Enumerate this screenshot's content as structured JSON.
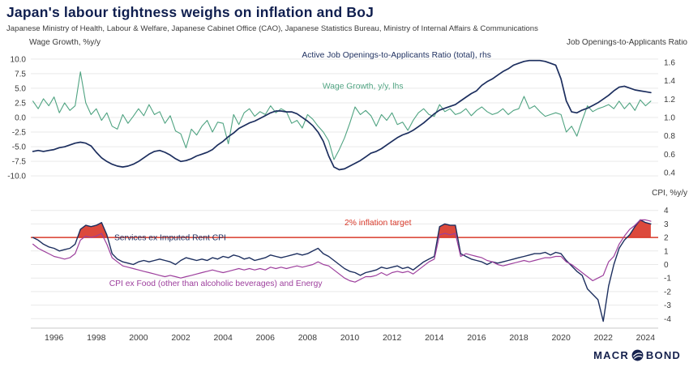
{
  "header": {
    "title": "Japan's labour tightness weighs on inflation and BoJ",
    "source_line": "Japanese Ministry of Health, Labour & Welfare, Japanese Cabinet Office (CAO), Japanese Statistics Bureau, Ministry of Internal Affairs & Communications"
  },
  "footer": {
    "brand_left": "MACR",
    "brand_right": "BOND"
  },
  "colors": {
    "title": "#101f4f",
    "navy": "#1c2e5e",
    "green": "#4fa381",
    "purple": "#9d3f9d",
    "red": "#d93a2b",
    "grid": "#e9e9e9",
    "axis_text": "#3a3a3a"
  },
  "chart_data": [
    {
      "type": "line",
      "panel": "top",
      "x_axis": {
        "min": 1994.9,
        "max": 2024.6,
        "ticks": [
          1996,
          1998,
          2000,
          2002,
          2004,
          2006,
          2008,
          2010,
          2012,
          2014,
          2016,
          2018,
          2020,
          2022,
          2024
        ],
        "show_labels": false
      },
      "left_axis": {
        "title": "Wage Growth, %y/y",
        "min": -11.5,
        "max": 11.5,
        "grid": true,
        "tick_values": [
          10,
          7.5,
          5,
          2.5,
          0,
          -2.5,
          -5,
          -7.5,
          -10
        ],
        "tick_labels": [
          "10.0",
          "7.5",
          "5.0",
          "2.5",
          "0.0",
          "-2.5",
          "-5.0",
          "-7.5",
          "-10.0"
        ]
      },
      "right_axis": {
        "title": "Job Openings-to-Applicants Ratio",
        "min": 0.267,
        "max": 1.732,
        "grid": false,
        "tick_values": [
          1.6,
          1.4,
          1.2,
          1.0,
          0.8,
          0.6,
          0.4
        ],
        "tick_labels": [
          "1.6",
          "1.4",
          "1.2",
          "1.0",
          "0.8",
          "0.6",
          "0.4"
        ]
      },
      "series": [
        {
          "name": "Wage Growth, y/y, lhs",
          "axis": "left",
          "color_key": "green",
          "width": 1.1,
          "x0": 1995,
          "dx": 0.25,
          "values": [
            2.8,
            1.5,
            3.2,
            2.0,
            3.5,
            0.8,
            2.5,
            1.2,
            2.0,
            7.8,
            2.5,
            0.5,
            1.5,
            -0.5,
            0.8,
            -1.5,
            -2.0,
            0.5,
            -1.0,
            0.2,
            1.5,
            0.3,
            2.2,
            0.5,
            1.0,
            -1.0,
            0.3,
            -2.3,
            -2.8,
            -5.2,
            -2.0,
            -3.0,
            -1.5,
            -0.5,
            -2.5,
            -0.8,
            -1.0,
            -4.5,
            0.5,
            -1.2,
            0.8,
            1.5,
            0.2,
            1.0,
            0.5,
            2.0,
            0.8,
            1.5,
            1.0,
            -1.0,
            -0.5,
            -1.8,
            0.5,
            -0.3,
            -1.5,
            -2.5,
            -4.0,
            -7.2,
            -5.5,
            -3.5,
            -1.0,
            1.8,
            0.5,
            1.2,
            0.3,
            -1.5,
            0.5,
            -0.5,
            0.8,
            -1.2,
            -0.8,
            -2.2,
            -0.5,
            0.8,
            1.5,
            0.5,
            0.2,
            2.2,
            1.0,
            1.5,
            0.5,
            0.8,
            1.5,
            0.3,
            1.2,
            1.8,
            1.0,
            0.5,
            0.8,
            1.5,
            0.5,
            1.2,
            1.5,
            3.6,
            1.5,
            2.0,
            1.0,
            0.2,
            0.5,
            0.8,
            0.5,
            -2.5,
            -1.5,
            -3.2,
            -0.5,
            2.0,
            1.0,
            1.5,
            1.8,
            2.2,
            1.5,
            2.8,
            1.5,
            2.5,
            1.2,
            3.0,
            2.0,
            2.8
          ]
        },
        {
          "name": "Active Job Openings-to-Applicants Ratio (total), rhs",
          "axis": "right",
          "color_key": "navy",
          "width": 1.7,
          "x0": 1995,
          "dx": 0.25,
          "values": [
            0.63,
            0.64,
            0.63,
            0.64,
            0.65,
            0.67,
            0.68,
            0.7,
            0.72,
            0.73,
            0.72,
            0.69,
            0.62,
            0.56,
            0.52,
            0.49,
            0.47,
            0.46,
            0.47,
            0.49,
            0.52,
            0.56,
            0.6,
            0.63,
            0.64,
            0.62,
            0.59,
            0.55,
            0.52,
            0.53,
            0.55,
            0.58,
            0.6,
            0.62,
            0.65,
            0.7,
            0.74,
            0.79,
            0.83,
            0.88,
            0.91,
            0.94,
            0.96,
            0.99,
            1.02,
            1.05,
            1.07,
            1.07,
            1.06,
            1.06,
            1.04,
            1.0,
            0.96,
            0.91,
            0.84,
            0.74,
            0.58,
            0.46,
            0.43,
            0.44,
            0.47,
            0.5,
            0.53,
            0.57,
            0.61,
            0.63,
            0.66,
            0.7,
            0.74,
            0.78,
            0.81,
            0.83,
            0.86,
            0.9,
            0.94,
            0.99,
            1.04,
            1.08,
            1.1,
            1.12,
            1.14,
            1.18,
            1.22,
            1.26,
            1.29,
            1.35,
            1.39,
            1.42,
            1.46,
            1.5,
            1.53,
            1.57,
            1.59,
            1.61,
            1.62,
            1.62,
            1.62,
            1.61,
            1.59,
            1.57,
            1.42,
            1.18,
            1.06,
            1.05,
            1.08,
            1.1,
            1.13,
            1.16,
            1.2,
            1.24,
            1.29,
            1.33,
            1.34,
            1.32,
            1.3,
            1.29,
            1.28,
            1.27
          ]
        }
      ],
      "annotations": [
        {
          "text": "Active Job Openings-to-Applicants Ratio (total), rhs",
          "color_key": "navy",
          "fx": 0.432,
          "fy": 0.055
        },
        {
          "text": "Wage Growth, y/y, lhs",
          "color_key": "green",
          "fx": 0.465,
          "fy": 0.285
        }
      ]
    },
    {
      "type": "line",
      "panel": "bottom",
      "x_axis": {
        "min": 1994.9,
        "max": 2024.6,
        "ticks": [
          1996,
          1998,
          2000,
          2002,
          2004,
          2006,
          2008,
          2010,
          2012,
          2014,
          2016,
          2018,
          2020,
          2022,
          2024
        ],
        "show_labels": true
      },
      "right_axis": {
        "title": "CPI, %y/y",
        "min": -4.7,
        "max": 4.7,
        "grid": true,
        "tick_values": [
          4,
          3,
          2,
          1,
          0,
          -1,
          -2,
          -3,
          -4
        ],
        "tick_labels": [
          "4",
          "3",
          "2",
          "1",
          "0",
          "-1",
          "-2",
          "-3",
          "-4"
        ]
      },
      "ref_lines": [
        {
          "label": "2% inflation target",
          "value": 2,
          "axis": "right",
          "color_key": "red",
          "width": 1.5
        }
      ],
      "fill_above": [
        {
          "series_index": 0,
          "threshold": 2,
          "color_key": "red"
        }
      ],
      "series": [
        {
          "name": "Services ex Imputed Rent CPI",
          "axis": "right",
          "color_key": "navy",
          "width": 1.4,
          "x0": 1995,
          "dx": 0.25,
          "values": [
            2.0,
            1.8,
            1.5,
            1.3,
            1.2,
            1.0,
            1.1,
            1.2,
            1.5,
            2.6,
            2.9,
            2.8,
            2.9,
            3.1,
            2.2,
            0.8,
            0.4,
            0.2,
            0.1,
            0.0,
            0.2,
            0.3,
            0.2,
            0.3,
            0.4,
            0.3,
            0.2,
            0.0,
            0.3,
            0.5,
            0.4,
            0.3,
            0.4,
            0.3,
            0.5,
            0.4,
            0.6,
            0.5,
            0.7,
            0.6,
            0.4,
            0.5,
            0.3,
            0.4,
            0.5,
            0.7,
            0.6,
            0.5,
            0.6,
            0.7,
            0.8,
            0.7,
            0.8,
            1.0,
            1.2,
            0.8,
            0.6,
            0.3,
            0.0,
            -0.3,
            -0.5,
            -0.6,
            -0.8,
            -0.6,
            -0.5,
            -0.4,
            -0.2,
            -0.3,
            -0.2,
            -0.1,
            -0.3,
            -0.2,
            -0.4,
            -0.1,
            0.2,
            0.4,
            0.6,
            2.8,
            3.0,
            2.9,
            2.9,
            0.8,
            0.6,
            0.4,
            0.3,
            0.2,
            0.0,
            0.2,
            0.1,
            0.2,
            0.3,
            0.4,
            0.5,
            0.6,
            0.7,
            0.8,
            0.8,
            0.9,
            0.7,
            0.9,
            0.8,
            0.3,
            -0.1,
            -0.5,
            -0.8,
            -1.8,
            -2.2,
            -2.6,
            -4.2,
            -1.6,
            0.0,
            1.2,
            1.8,
            2.2,
            2.8,
            3.3,
            3.1,
            3.0
          ]
        },
        {
          "name": "CPI ex Food (other than alcoholic beverages) and Energy",
          "axis": "right",
          "color_key": "purple",
          "width": 1.2,
          "x0": 1995,
          "dx": 0.25,
          "values": [
            1.5,
            1.2,
            1.0,
            0.8,
            0.6,
            0.5,
            0.4,
            0.5,
            0.8,
            1.8,
            2.1,
            2.0,
            2.1,
            2.3,
            1.5,
            0.5,
            0.2,
            -0.1,
            -0.2,
            -0.3,
            -0.4,
            -0.5,
            -0.6,
            -0.7,
            -0.8,
            -0.9,
            -0.8,
            -0.9,
            -1.0,
            -0.9,
            -0.8,
            -0.7,
            -0.6,
            -0.5,
            -0.4,
            -0.5,
            -0.6,
            -0.5,
            -0.4,
            -0.3,
            -0.4,
            -0.3,
            -0.4,
            -0.3,
            -0.4,
            -0.2,
            -0.3,
            -0.2,
            -0.3,
            -0.2,
            -0.1,
            -0.2,
            -0.1,
            0.0,
            0.2,
            0.0,
            -0.1,
            -0.4,
            -0.7,
            -1.0,
            -1.2,
            -1.3,
            -1.1,
            -0.9,
            -0.9,
            -0.8,
            -0.6,
            -0.8,
            -0.6,
            -0.5,
            -0.6,
            -0.5,
            -0.7,
            -0.4,
            -0.1,
            0.2,
            0.4,
            2.2,
            2.3,
            2.2,
            2.3,
            0.6,
            0.8,
            0.7,
            0.6,
            0.5,
            0.3,
            0.2,
            0.0,
            -0.1,
            0.0,
            0.1,
            0.2,
            0.3,
            0.2,
            0.3,
            0.4,
            0.5,
            0.5,
            0.6,
            0.6,
            0.2,
            0.0,
            -0.3,
            -0.6,
            -0.9,
            -1.2,
            -1.0,
            -0.8,
            0.2,
            0.6,
            1.5,
            2.1,
            2.6,
            2.9,
            3.3,
            3.3,
            3.2
          ]
        }
      ],
      "annotations": [
        {
          "text": "2% inflation target",
          "color_key": "red",
          "fx": 0.5,
          "fy": 0.19
        },
        {
          "text": "Services ex Imputed Rent CPI",
          "color_key": "navy",
          "fx": 0.133,
          "fy": 0.31
        },
        {
          "text": "CPI ex Food (other than alcoholic beverages) and Energy",
          "color_key": "purple",
          "fx": 0.125,
          "fy": 0.67
        }
      ]
    }
  ]
}
